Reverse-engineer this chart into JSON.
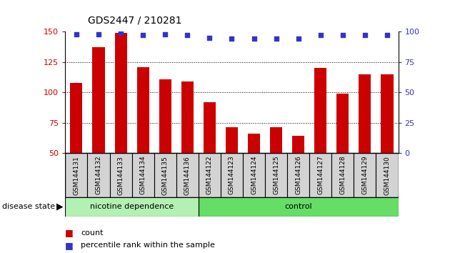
{
  "title": "GDS2447 / 210281",
  "categories": [
    "GSM144131",
    "GSM144132",
    "GSM144133",
    "GSM144134",
    "GSM144135",
    "GSM144136",
    "GSM144122",
    "GSM144123",
    "GSM144124",
    "GSM144125",
    "GSM144126",
    "GSM144127",
    "GSM144128",
    "GSM144129",
    "GSM144130"
  ],
  "bar_values": [
    108,
    137,
    149,
    121,
    111,
    109,
    92,
    71,
    66,
    71,
    64,
    120,
    99,
    115,
    115
  ],
  "percentile_y": [
    148,
    148,
    149,
    147,
    148,
    147,
    145,
    144,
    144,
    144,
    144,
    147,
    147,
    147,
    147
  ],
  "bar_color": "#cc0000",
  "dot_color": "#3333cc",
  "ylim_left": [
    50,
    150
  ],
  "ylim_right": [
    0,
    100
  ],
  "yticks_left": [
    50,
    75,
    100,
    125,
    150
  ],
  "yticks_right": [
    0,
    25,
    50,
    75,
    100
  ],
  "grid_values": [
    75,
    100,
    125
  ],
  "nicotine_count": 6,
  "control_count": 9,
  "group1_label": "nicotine dependence",
  "group2_label": "control",
  "disease_state_label": "disease state",
  "legend_count": "count",
  "legend_percentile": "percentile rank within the sample",
  "background_color": "#ffffff",
  "tick_label_color_left": "#cc0000",
  "tick_label_color_right": "#3333cc",
  "bar_width": 0.55,
  "group_light_green": "#b3f0b3",
  "group_bright_green": "#66dd66",
  "tick_bg_color": "#d3d3d3"
}
